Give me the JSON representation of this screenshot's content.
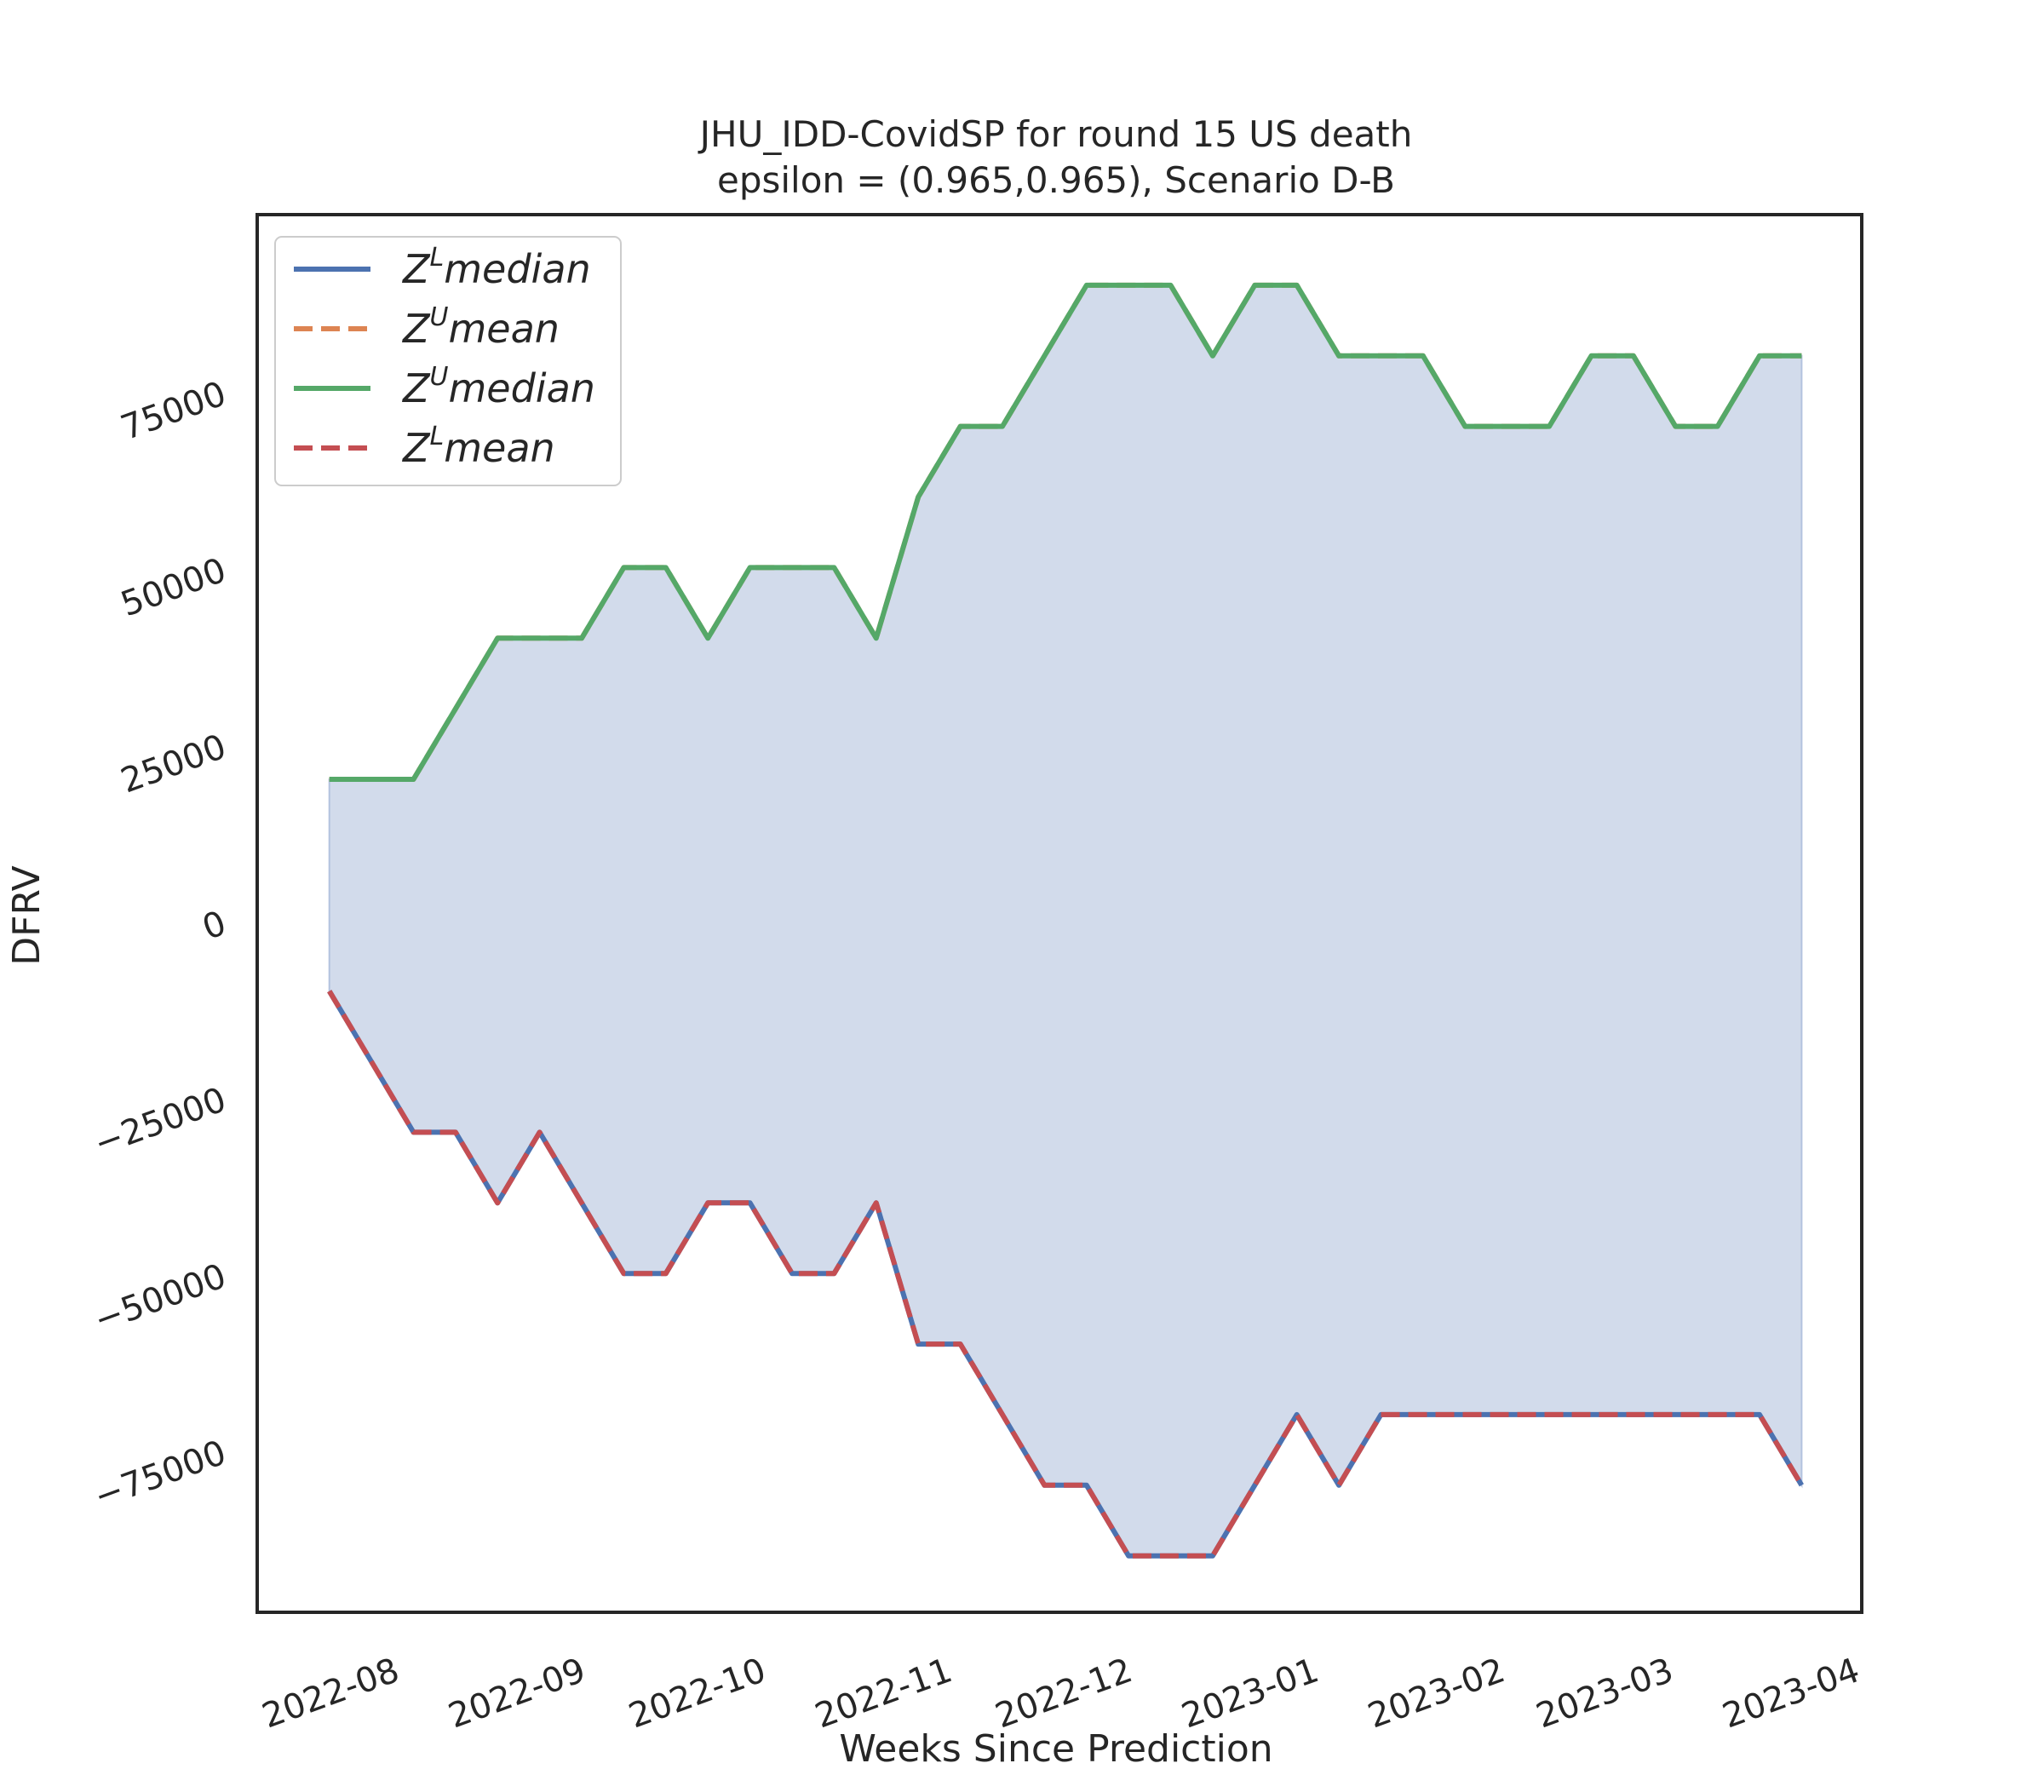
{
  "chart_data": {
    "type": "area",
    "title": "JHU_IDD-CovidSP for round 15 US  death",
    "subtitle": "epsilon = (0.965,0.965), Scenario D-B",
    "xlabel": "Weeks Since Prediction",
    "ylabel": "DFRV",
    "xlim": [
      "2022-07-08",
      "2023-04-01"
    ],
    "ylim": [
      -98000,
      100000
    ],
    "yticks": [
      -75000,
      -50000,
      -25000,
      0,
      25000,
      50000,
      75000
    ],
    "ytick_labels": [
      "−75000",
      "−50000",
      "−25000",
      "0",
      "25000",
      "50000",
      "75000"
    ],
    "xticks": [
      "2022-08-01",
      "2022-09-01",
      "2022-10-01",
      "2022-11-01",
      "2022-12-01",
      "2023-01-01",
      "2023-02-01",
      "2023-03-01",
      "2023-04-01"
    ],
    "xtick_labels": [
      "2022-08",
      "2022-09",
      "2022-10",
      "2022-11",
      "2022-12",
      "2023-01",
      "2023-02",
      "2023-03",
      "2023-04"
    ],
    "grid": false,
    "legend_position": "top-left",
    "fill_color": "#d2dbeb",
    "dates": [
      "2022-07-20",
      "2022-07-27",
      "2022-08-03",
      "2022-08-10",
      "2022-08-17",
      "2022-08-24",
      "2022-08-31",
      "2022-09-07",
      "2022-09-14",
      "2022-09-21",
      "2022-09-28",
      "2022-10-05",
      "2022-10-12",
      "2022-10-19",
      "2022-10-26",
      "2022-11-02",
      "2022-11-09",
      "2022-11-16",
      "2022-11-23",
      "2022-11-30",
      "2022-12-07",
      "2022-12-14",
      "2022-12-21",
      "2022-12-28",
      "2023-01-04",
      "2023-01-11",
      "2023-01-18",
      "2023-01-25",
      "2023-02-01",
      "2023-02-08",
      "2023-02-15",
      "2023-02-22",
      "2023-03-01",
      "2023-03-08",
      "2023-03-15",
      "2023-03-22"
    ],
    "upper": [
      20000,
      20000,
      20000,
      30000,
      40000,
      40000,
      40000,
      50000,
      50000,
      40000,
      50000,
      50000,
      50000,
      40000,
      60000,
      70000,
      70000,
      80000,
      90000,
      90000,
      90000,
      80000,
      90000,
      90000,
      80000,
      80000,
      80000,
      70000,
      70000,
      70000,
      80000,
      80000,
      70000,
      70000,
      80000,
      80000
    ],
    "lower": [
      -10000,
      -20000,
      -30000,
      -30000,
      -40000,
      -30000,
      -40000,
      -50000,
      -50000,
      -40000,
      -40000,
      -50000,
      -50000,
      -40000,
      -60000,
      -60000,
      -70000,
      -80000,
      -80000,
      -90000,
      -90000,
      -90000,
      -80000,
      -70000,
      -80000,
      -70000,
      -70000,
      -70000,
      -70000,
      -70000,
      -70000,
      -70000,
      -70000,
      -70000,
      -70000,
      -80000
    ],
    "series": [
      {
        "name": "median",
        "sup": "L",
        "color": "#4c72b0",
        "dash": false,
        "role": "lower"
      },
      {
        "name": "mean",
        "sup": "U",
        "color": "#dd8452",
        "dash": true,
        "role": "upper"
      },
      {
        "name": "median",
        "sup": "U",
        "color": "#55a868",
        "dash": false,
        "role": "upper"
      },
      {
        "name": "mean",
        "sup": "L",
        "color": "#c44e52",
        "dash": true,
        "role": "lower"
      }
    ]
  }
}
